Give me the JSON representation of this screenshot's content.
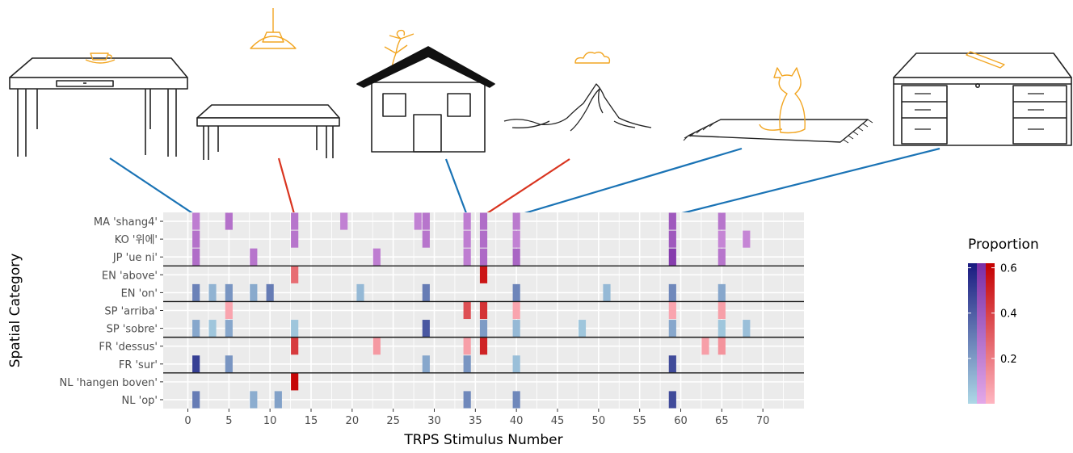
{
  "chart_data": {
    "type": "heatmap",
    "xlabel": "TRPS Stimulus Number",
    "ylabel": "Spatial Category",
    "x_ticks": [
      0,
      5,
      10,
      15,
      20,
      25,
      30,
      35,
      40,
      45,
      50,
      55,
      60,
      65,
      70
    ],
    "x_range": [
      -3,
      75
    ],
    "legend": {
      "title": "Proportion",
      "ticks": [
        0.2,
        0.4,
        0.6
      ],
      "max": 0.62,
      "scales": {
        "blue": {
          "low": "#add8e6",
          "high": "#1a1a80"
        },
        "purple": {
          "low": "#e3a8e8",
          "high": "#7a2ea6"
        },
        "red": {
          "low": "#ffb6c1",
          "high": "#c40000"
        }
      }
    },
    "categories": [
      "MA 'shang4'",
      "KO '위에'",
      "JP 'ue ni'",
      "EN 'above'",
      "EN 'on'",
      "SP 'arriba'",
      "SP 'sobre'",
      "FR 'dessus'",
      "FR 'sur'",
      "NL 'hangen boven'",
      "NL 'op'"
    ],
    "category_scale": [
      "purple",
      "purple",
      "purple",
      "red",
      "blue",
      "red",
      "blue",
      "red",
      "blue",
      "red",
      "blue"
    ],
    "separators_after": [
      2,
      4,
      6,
      8
    ],
    "cells": [
      {
        "row": 0,
        "x": 1,
        "v": 0.22
      },
      {
        "row": 0,
        "x": 5,
        "v": 0.28
      },
      {
        "row": 0,
        "x": 13,
        "v": 0.26
      },
      {
        "row": 0,
        "x": 19,
        "v": 0.2
      },
      {
        "row": 0,
        "x": 28,
        "v": 0.2
      },
      {
        "row": 0,
        "x": 29,
        "v": 0.26
      },
      {
        "row": 0,
        "x": 34,
        "v": 0.22
      },
      {
        "row": 0,
        "x": 36,
        "v": 0.3
      },
      {
        "row": 0,
        "x": 40,
        "v": 0.24
      },
      {
        "row": 0,
        "x": 59,
        "v": 0.4
      },
      {
        "row": 0,
        "x": 65,
        "v": 0.26
      },
      {
        "row": 1,
        "x": 1,
        "v": 0.28
      },
      {
        "row": 1,
        "x": 13,
        "v": 0.26
      },
      {
        "row": 1,
        "x": 29,
        "v": 0.26
      },
      {
        "row": 1,
        "x": 34,
        "v": 0.22
      },
      {
        "row": 1,
        "x": 36,
        "v": 0.3
      },
      {
        "row": 1,
        "x": 40,
        "v": 0.2
      },
      {
        "row": 1,
        "x": 59,
        "v": 0.4
      },
      {
        "row": 1,
        "x": 65,
        "v": 0.18
      },
      {
        "row": 1,
        "x": 68,
        "v": 0.18
      },
      {
        "row": 2,
        "x": 1,
        "v": 0.3
      },
      {
        "row": 2,
        "x": 8,
        "v": 0.26
      },
      {
        "row": 2,
        "x": 23,
        "v": 0.22
      },
      {
        "row": 2,
        "x": 34,
        "v": 0.22
      },
      {
        "row": 2,
        "x": 36,
        "v": 0.32
      },
      {
        "row": 2,
        "x": 40,
        "v": 0.34
      },
      {
        "row": 2,
        "x": 59,
        "v": 0.55
      },
      {
        "row": 2,
        "x": 65,
        "v": 0.26
      },
      {
        "row": 3,
        "x": 13,
        "v": 0.25
      },
      {
        "row": 3,
        "x": 36,
        "v": 0.55
      },
      {
        "row": 4,
        "x": 1,
        "v": 0.28
      },
      {
        "row": 4,
        "x": 3,
        "v": 0.12
      },
      {
        "row": 4,
        "x": 5,
        "v": 0.22
      },
      {
        "row": 4,
        "x": 8,
        "v": 0.15
      },
      {
        "row": 4,
        "x": 10,
        "v": 0.3
      },
      {
        "row": 4,
        "x": 21,
        "v": 0.1
      },
      {
        "row": 4,
        "x": 29,
        "v": 0.3
      },
      {
        "row": 4,
        "x": 40,
        "v": 0.27
      },
      {
        "row": 4,
        "x": 51,
        "v": 0.1
      },
      {
        "row": 4,
        "x": 59,
        "v": 0.26
      },
      {
        "row": 4,
        "x": 65,
        "v": 0.16
      },
      {
        "row": 5,
        "x": 5,
        "v": 0.06
      },
      {
        "row": 5,
        "x": 34,
        "v": 0.35
      },
      {
        "row": 5,
        "x": 36,
        "v": 0.45
      },
      {
        "row": 5,
        "x": 40,
        "v": 0.06
      },
      {
        "row": 5,
        "x": 59,
        "v": 0.06
      },
      {
        "row": 5,
        "x": 65,
        "v": 0.08
      },
      {
        "row": 6,
        "x": 1,
        "v": 0.16
      },
      {
        "row": 6,
        "x": 3,
        "v": 0.06
      },
      {
        "row": 6,
        "x": 5,
        "v": 0.16
      },
      {
        "row": 6,
        "x": 13,
        "v": 0.06
      },
      {
        "row": 6,
        "x": 29,
        "v": 0.42
      },
      {
        "row": 6,
        "x": 36,
        "v": 0.2
      },
      {
        "row": 6,
        "x": 40,
        "v": 0.1
      },
      {
        "row": 6,
        "x": 48,
        "v": 0.06
      },
      {
        "row": 6,
        "x": 59,
        "v": 0.16
      },
      {
        "row": 6,
        "x": 65,
        "v": 0.06
      },
      {
        "row": 6,
        "x": 68,
        "v": 0.08
      },
      {
        "row": 7,
        "x": 13,
        "v": 0.42
      },
      {
        "row": 7,
        "x": 23,
        "v": 0.1
      },
      {
        "row": 7,
        "x": 34,
        "v": 0.08
      },
      {
        "row": 7,
        "x": 36,
        "v": 0.5
      },
      {
        "row": 7,
        "x": 63,
        "v": 0.08
      },
      {
        "row": 7,
        "x": 65,
        "v": 0.12
      },
      {
        "row": 8,
        "x": 1,
        "v": 0.5
      },
      {
        "row": 8,
        "x": 5,
        "v": 0.22
      },
      {
        "row": 8,
        "x": 29,
        "v": 0.16
      },
      {
        "row": 8,
        "x": 34,
        "v": 0.22
      },
      {
        "row": 8,
        "x": 40,
        "v": 0.08
      },
      {
        "row": 8,
        "x": 59,
        "v": 0.46
      },
      {
        "row": 9,
        "x": 13,
        "v": 0.6
      },
      {
        "row": 10,
        "x": 1,
        "v": 0.3
      },
      {
        "row": 10,
        "x": 8,
        "v": 0.14
      },
      {
        "row": 10,
        "x": 11,
        "v": 0.18
      },
      {
        "row": 10,
        "x": 34,
        "v": 0.26
      },
      {
        "row": 10,
        "x": 40,
        "v": 0.26
      },
      {
        "row": 10,
        "x": 59,
        "v": 0.46
      }
    ],
    "connectors": [
      {
        "stimulus": 1,
        "color": "#1a73b5"
      },
      {
        "stimulus": 13,
        "color": "#d9341f"
      },
      {
        "stimulus": 34,
        "color": "#1a73b5"
      },
      {
        "stimulus": 36,
        "color": "#d9341f"
      },
      {
        "stimulus": 40,
        "color": "#1a73b5"
      },
      {
        "stimulus": 59,
        "color": "#1a73b5"
      }
    ],
    "illustrations": [
      {
        "id": "table-cup",
        "depicts": "cup on table"
      },
      {
        "id": "lamp-table",
        "depicts": "lamp hanging above table"
      },
      {
        "id": "house-figure",
        "depicts": "figure on house roof"
      },
      {
        "id": "cloud-mountain",
        "depicts": "cloud above mountain"
      },
      {
        "id": "cat-rug",
        "depicts": "cat on rug"
      },
      {
        "id": "pencil-desk",
        "depicts": "pencil on desk"
      }
    ],
    "colors": {
      "panel": "#ebebeb",
      "grid": "#ffffff",
      "separator": "#1a1a1a",
      "ink": "#222222",
      "accent": "#f2a623"
    }
  }
}
